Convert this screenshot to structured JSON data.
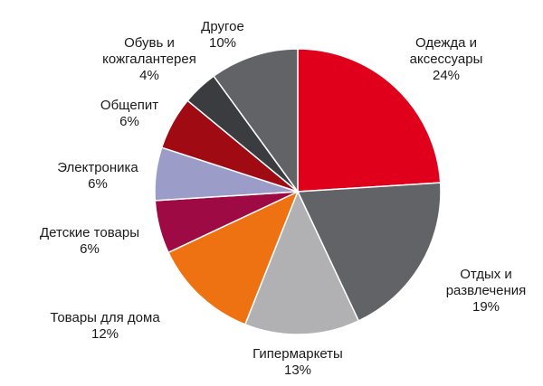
{
  "chart_data": {
    "type": "pie",
    "title": "",
    "slices": [
      {
        "lines": [
          "Одежда и",
          "аксессуары"
        ],
        "value": 24,
        "value_label": "24%",
        "color": "#e0001b"
      },
      {
        "lines": [
          "Отдых и",
          "развлечения"
        ],
        "value": 19,
        "value_label": "19%",
        "color": "#626366"
      },
      {
        "lines": [
          "Гипермаркеты"
        ],
        "value": 13,
        "value_label": "13%",
        "color": "#b1b1b3"
      },
      {
        "lines": [
          "Товары для дома"
        ],
        "value": 12,
        "value_label": "12%",
        "color": "#ef7212"
      },
      {
        "lines": [
          "Детские товары"
        ],
        "value": 6,
        "value_label": "6%",
        "color": "#9e0a43"
      },
      {
        "lines": [
          "Электроника"
        ],
        "value": 6,
        "value_label": "6%",
        "color": "#9b9cc7"
      },
      {
        "lines": [
          "Общепит"
        ],
        "value": 6,
        "value_label": "6%",
        "color": "#a00a12"
      },
      {
        "lines": [
          "Обувь и",
          "кожгалантерея"
        ],
        "value": 4,
        "value_label": "4%",
        "color": "#3b3c3f"
      },
      {
        "lines": [
          "Другое"
        ],
        "value": 10,
        "value_label": "10%",
        "color": "#626366"
      }
    ],
    "start_angle": "12 o'clock",
    "direction": "clockwise",
    "legend": "none"
  }
}
